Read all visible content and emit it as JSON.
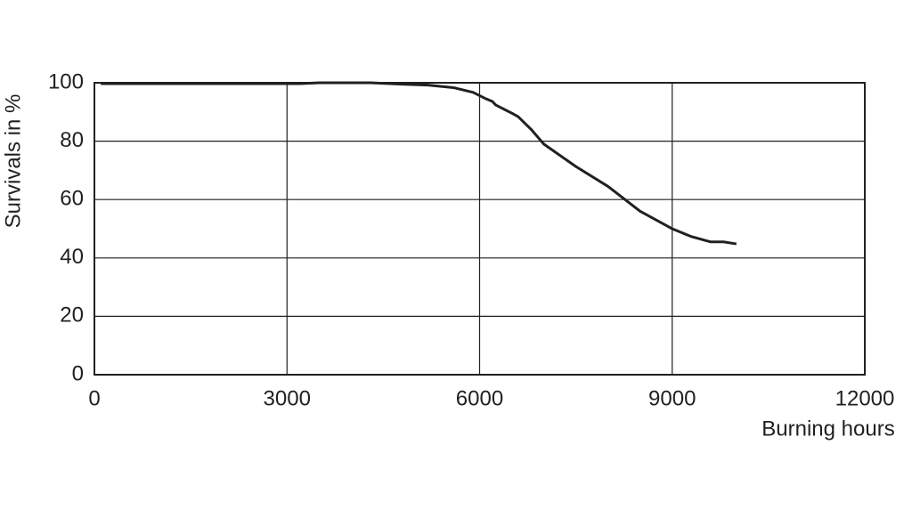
{
  "chart_data": {
    "type": "line",
    "x_label": "Burning hours",
    "y_label": "Survivals in %",
    "x": [
      100,
      3200,
      3500,
      4300,
      4800,
      5200,
      5600,
      5900,
      6100,
      6200,
      6250,
      6500,
      6600,
      6800,
      7000,
      7500,
      8000,
      8500,
      9000,
      9300,
      9600,
      9800,
      10000
    ],
    "series": [
      {
        "name": "Survivals",
        "color": "#231f20",
        "values": [
          99.7,
          99.7,
          100,
          100,
          99.5,
          99.2,
          98.3,
          96.7,
          94.5,
          93.6,
          92.4,
          89.6,
          88.4,
          84.1,
          79,
          71.3,
          64.5,
          56,
          50,
          47.3,
          45.5,
          45.5,
          44.8
        ]
      }
    ],
    "xlim": [
      0,
      12000
    ],
    "xticks": [
      0,
      3000,
      6000,
      9000,
      12000
    ],
    "ylim": [
      0,
      100
    ],
    "yticks": [
      0,
      20,
      40,
      60,
      80,
      100
    ],
    "grid": true
  }
}
